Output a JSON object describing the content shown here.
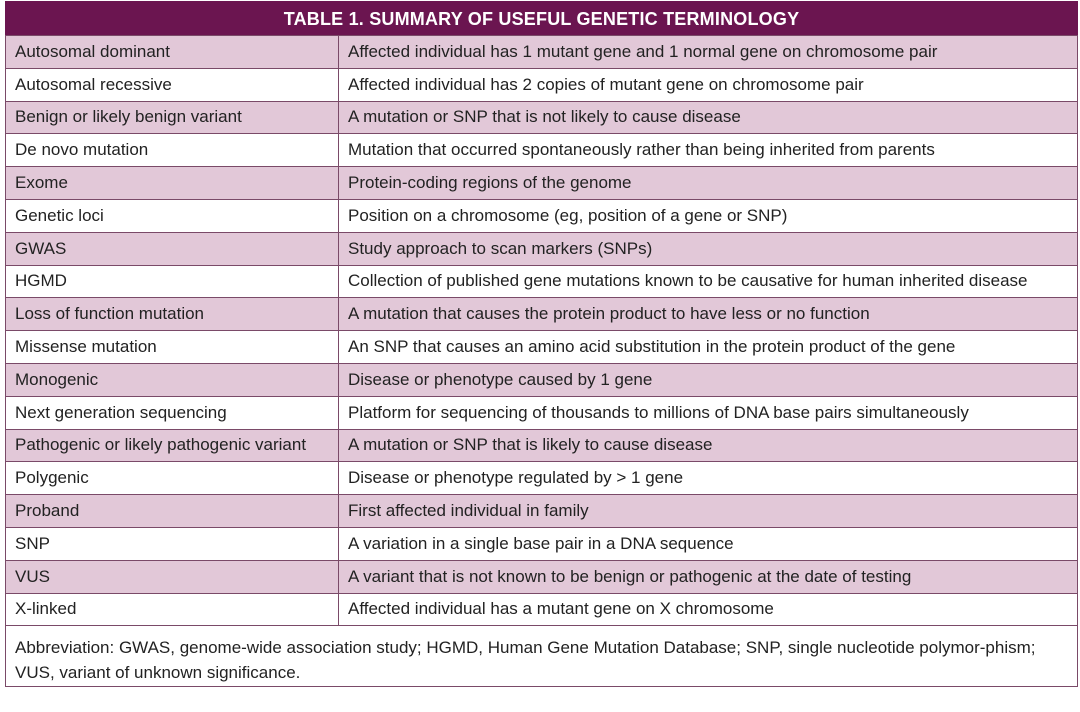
{
  "table": {
    "title": "TABLE 1. SUMMARY OF USEFUL GENETIC TERMINOLOGY",
    "rows": [
      [
        "Autosomal dominant",
        "Affected individual has 1 mutant gene and 1 normal gene on chromosome pair"
      ],
      [
        "Autosomal recessive",
        "Affected individual has 2 copies of mutant gene on chromosome pair"
      ],
      [
        "Benign or likely benign variant",
        "A mutation or SNP that is not likely to cause disease"
      ],
      [
        "De novo mutation",
        "Mutation that occurred spontaneously rather than being inherited from parents"
      ],
      [
        "Exome",
        "Protein-coding regions of the genome"
      ],
      [
        "Genetic loci",
        "Position on a chromosome (eg, position of a gene or SNP)"
      ],
      [
        "GWAS",
        "Study approach to scan markers (SNPs)"
      ],
      [
        "HGMD",
        "Collection of published gene mutations known to be causative for human inherited disease"
      ],
      [
        "Loss of function mutation",
        "A mutation that causes the protein product to have less or no function"
      ],
      [
        "Missense mutation",
        "An SNP that causes an amino acid substitution in the protein product of the gene"
      ],
      [
        "Monogenic",
        "Disease or phenotype caused by 1 gene"
      ],
      [
        "Next generation sequencing",
        "Platform for sequencing of thousands to millions of DNA base pairs simultaneously"
      ],
      [
        "Pathogenic or likely pathogenic variant",
        "A mutation or SNP that is likely to cause disease"
      ],
      [
        "Polygenic",
        "Disease or phenotype regulated by > 1 gene"
      ],
      [
        "Proband",
        "First affected individual in family"
      ],
      [
        "SNP",
        "A variation in a single base pair in a DNA sequence"
      ],
      [
        "VUS",
        "A variant that is not known to be benign or pathogenic at the date of testing"
      ],
      [
        "X-linked",
        "Affected individual has a mutant gene on X chromosome"
      ]
    ],
    "footnote": "Abbreviation: GWAS, genome-wide association study; HGMD, Human Gene Mutation Database; SNP, single nucleotide polymor-phism; VUS, variant of unknown significance."
  }
}
